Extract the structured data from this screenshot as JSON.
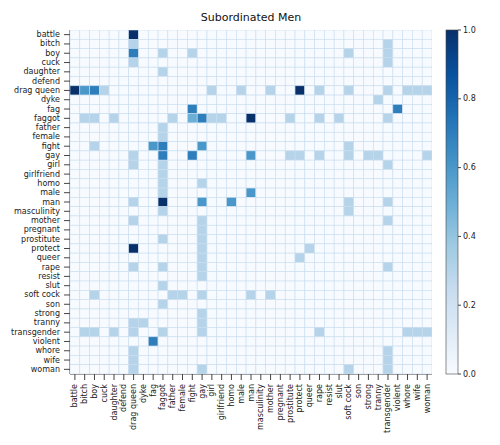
{
  "chart_data": {
    "type": "heatmap",
    "title": "Subordinated Men",
    "x_categories": [
      "battle",
      "bitch",
      "boy",
      "cuck",
      "daughter",
      "defend",
      "drag queen",
      "dyke",
      "fag",
      "faggot",
      "father",
      "female",
      "fight",
      "gay",
      "girl",
      "girlfriend",
      "homo",
      "male",
      "man",
      "masculinity",
      "mother",
      "pregnant",
      "prostitute",
      "protect",
      "queer",
      "rape",
      "resist",
      "slut",
      "soft cock",
      "son",
      "strong",
      "tranny",
      "transgender",
      "violent",
      "whore",
      "wife",
      "woman"
    ],
    "y_categories": [
      "battle",
      "bitch",
      "boy",
      "cuck",
      "daughter",
      "defend",
      "drag queen",
      "dyke",
      "fag",
      "faggot",
      "father",
      "female",
      "fight",
      "gay",
      "girl",
      "girlfriend",
      "homo",
      "male",
      "man",
      "masculinity",
      "mother",
      "pregnant",
      "prostitute",
      "protect",
      "queer",
      "rape",
      "resist",
      "slut",
      "soft cock",
      "son",
      "strong",
      "tranny",
      "transgender",
      "violent",
      "whore",
      "wife",
      "woman"
    ],
    "values": [
      [
        0,
        0,
        0,
        0,
        0,
        0,
        1,
        0,
        0,
        0,
        0,
        0,
        0,
        0,
        0,
        0,
        0,
        0,
        0,
        0,
        0,
        0,
        0,
        0,
        0,
        0,
        0,
        0,
        0,
        0,
        0,
        0,
        0,
        0,
        0,
        0,
        0
      ],
      [
        0,
        0,
        0,
        0,
        0,
        0,
        0.3,
        0,
        0,
        0,
        0,
        0,
        0,
        0,
        0,
        0,
        0,
        0,
        0,
        0,
        0,
        0,
        0,
        0,
        0,
        0,
        0,
        0,
        0,
        0,
        0,
        0,
        0.3,
        0,
        0,
        0,
        0
      ],
      [
        0,
        0,
        0,
        0,
        0,
        0,
        0.7,
        0,
        0,
        0.3,
        0,
        0,
        0.3,
        0,
        0,
        0,
        0,
        0,
        0,
        0,
        0,
        0,
        0,
        0,
        0,
        0,
        0,
        0,
        0.3,
        0,
        0,
        0,
        0.3,
        0,
        0,
        0,
        0
      ],
      [
        0,
        0,
        0,
        0,
        0,
        0,
        0.3,
        0,
        0,
        0,
        0,
        0,
        0,
        0,
        0,
        0,
        0,
        0,
        0,
        0,
        0,
        0,
        0,
        0,
        0,
        0,
        0,
        0,
        0,
        0,
        0,
        0,
        0.3,
        0,
        0,
        0,
        0
      ],
      [
        0,
        0,
        0,
        0,
        0,
        0,
        0,
        0,
        0,
        0.3,
        0,
        0,
        0,
        0,
        0,
        0,
        0,
        0,
        0,
        0,
        0,
        0,
        0,
        0,
        0,
        0,
        0,
        0,
        0,
        0,
        0,
        0,
        0,
        0,
        0,
        0,
        0
      ],
      [
        0,
        0,
        0,
        0,
        0,
        0,
        0,
        0,
        0,
        0,
        0,
        0,
        0,
        0,
        0,
        0,
        0,
        0,
        0,
        0,
        0,
        0,
        0,
        0,
        0,
        0,
        0,
        0,
        0,
        0,
        0,
        0,
        0,
        0,
        0,
        0,
        0
      ],
      [
        1,
        0.6,
        0.7,
        0.3,
        0,
        0,
        0,
        0,
        0,
        0,
        0,
        0,
        0,
        0,
        0.3,
        0,
        0,
        0.3,
        0,
        0,
        0.3,
        0,
        0,
        1,
        0,
        0.3,
        0,
        0,
        0.3,
        0,
        0,
        0,
        0.3,
        0,
        0.3,
        0.3,
        0.3
      ],
      [
        0,
        0,
        0,
        0,
        0,
        0,
        0,
        0,
        0,
        0,
        0,
        0,
        0,
        0,
        0,
        0,
        0,
        0,
        0,
        0,
        0,
        0,
        0,
        0,
        0,
        0,
        0,
        0,
        0,
        0,
        0,
        0.3,
        0,
        0,
        0,
        0,
        0
      ],
      [
        0,
        0,
        0,
        0,
        0,
        0,
        0,
        0,
        0,
        0,
        0,
        0,
        0.7,
        0,
        0,
        0,
        0,
        0,
        0,
        0,
        0,
        0,
        0,
        0,
        0,
        0,
        0,
        0,
        0,
        0,
        0,
        0,
        0,
        0.7,
        0,
        0,
        0
      ],
      [
        0,
        0.3,
        0.3,
        0,
        0.3,
        0,
        0,
        0,
        0,
        0,
        0.3,
        0,
        0.5,
        0.7,
        0.3,
        0.3,
        0,
        0,
        1,
        0,
        0,
        0,
        0.3,
        0,
        0,
        0.3,
        0,
        0.3,
        0,
        0,
        0,
        0,
        0.3,
        0,
        0,
        0,
        0
      ],
      [
        0,
        0,
        0,
        0,
        0,
        0,
        0,
        0,
        0,
        0.3,
        0,
        0,
        0,
        0,
        0,
        0,
        0,
        0,
        0,
        0,
        0,
        0,
        0,
        0,
        0,
        0,
        0,
        0,
        0,
        0,
        0,
        0,
        0,
        0,
        0,
        0,
        0
      ],
      [
        0,
        0,
        0,
        0,
        0,
        0,
        0,
        0,
        0,
        0.3,
        0,
        0,
        0,
        0,
        0,
        0,
        0,
        0,
        0,
        0,
        0,
        0,
        0,
        0,
        0,
        0,
        0,
        0,
        0,
        0,
        0,
        0,
        0,
        0,
        0,
        0,
        0
      ],
      [
        0,
        0,
        0.3,
        0,
        0,
        0,
        0,
        0,
        0.6,
        0.7,
        0,
        0,
        0,
        0.6,
        0,
        0,
        0,
        0,
        0,
        0,
        0,
        0,
        0,
        0,
        0,
        0,
        0,
        0,
        0.3,
        0,
        0,
        0,
        0,
        0,
        0,
        0,
        0
      ],
      [
        0,
        0,
        0,
        0,
        0,
        0,
        0.3,
        0,
        0,
        0.7,
        0,
        0,
        0.7,
        0,
        0,
        0,
        0,
        0,
        0.6,
        0,
        0,
        0,
        0.3,
        0.3,
        0,
        0.3,
        0,
        0,
        0.3,
        0,
        0.3,
        0.3,
        0,
        0,
        0,
        0,
        0.3
      ],
      [
        0,
        0,
        0,
        0,
        0,
        0,
        0.3,
        0,
        0,
        0.3,
        0,
        0,
        0,
        0,
        0,
        0,
        0,
        0,
        0,
        0,
        0,
        0,
        0,
        0,
        0,
        0,
        0,
        0,
        0,
        0,
        0,
        0,
        0.3,
        0,
        0,
        0,
        0
      ],
      [
        0,
        0,
        0,
        0,
        0,
        0,
        0,
        0,
        0,
        0.3,
        0,
        0,
        0,
        0,
        0,
        0,
        0,
        0,
        0,
        0,
        0,
        0,
        0,
        0,
        0,
        0,
        0,
        0,
        0,
        0,
        0,
        0,
        0,
        0,
        0,
        0,
        0
      ],
      [
        0,
        0,
        0,
        0,
        0,
        0,
        0,
        0,
        0,
        0.3,
        0,
        0,
        0,
        0.3,
        0,
        0,
        0,
        0,
        0,
        0,
        0,
        0,
        0,
        0,
        0,
        0,
        0,
        0,
        0,
        0,
        0,
        0,
        0,
        0,
        0,
        0,
        0
      ],
      [
        0,
        0,
        0,
        0,
        0,
        0,
        0,
        0,
        0,
        0.3,
        0,
        0,
        0,
        0,
        0,
        0,
        0,
        0,
        0.6,
        0,
        0,
        0,
        0,
        0,
        0,
        0,
        0,
        0,
        0,
        0,
        0,
        0,
        0,
        0,
        0,
        0,
        0
      ],
      [
        0,
        0,
        0,
        0,
        0,
        0,
        0.3,
        0,
        0,
        1,
        0,
        0,
        0,
        0.6,
        0,
        0,
        0.6,
        0,
        0,
        0,
        0,
        0,
        0,
        0,
        0,
        0,
        0,
        0,
        0.3,
        0,
        0,
        0,
        0.3,
        0,
        0,
        0,
        0
      ],
      [
        0,
        0,
        0,
        0,
        0,
        0,
        0,
        0,
        0,
        0.3,
        0,
        0,
        0,
        0,
        0,
        0,
        0,
        0,
        0,
        0,
        0,
        0,
        0,
        0,
        0,
        0,
        0,
        0,
        0.3,
        0,
        0,
        0,
        0,
        0,
        0,
        0,
        0
      ],
      [
        0,
        0,
        0,
        0,
        0,
        0,
        0.3,
        0,
        0,
        0,
        0,
        0,
        0,
        0.3,
        0,
        0,
        0,
        0,
        0,
        0,
        0,
        0,
        0,
        0,
        0,
        0,
        0,
        0,
        0,
        0,
        0,
        0,
        0.3,
        0,
        0,
        0,
        0
      ],
      [
        0,
        0,
        0,
        0,
        0,
        0,
        0,
        0,
        0,
        0,
        0,
        0,
        0,
        0.3,
        0,
        0,
        0,
        0,
        0,
        0,
        0,
        0,
        0,
        0,
        0,
        0,
        0,
        0,
        0,
        0,
        0,
        0,
        0,
        0,
        0,
        0,
        0
      ],
      [
        0,
        0,
        0,
        0,
        0,
        0,
        0,
        0,
        0,
        0.3,
        0,
        0,
        0,
        0.3,
        0,
        0,
        0,
        0,
        0,
        0,
        0,
        0,
        0,
        0,
        0,
        0,
        0,
        0,
        0,
        0,
        0,
        0,
        0,
        0,
        0,
        0,
        0
      ],
      [
        0,
        0,
        0,
        0,
        0,
        0,
        1,
        0,
        0,
        0,
        0,
        0,
        0,
        0.3,
        0,
        0,
        0,
        0,
        0,
        0,
        0,
        0,
        0,
        0,
        0.3,
        0,
        0,
        0,
        0,
        0,
        0,
        0,
        0,
        0,
        0,
        0,
        0
      ],
      [
        0,
        0,
        0,
        0,
        0,
        0,
        0,
        0,
        0,
        0,
        0,
        0,
        0,
        0.3,
        0,
        0,
        0,
        0,
        0,
        0,
        0,
        0,
        0,
        0.3,
        0,
        0,
        0,
        0,
        0,
        0,
        0,
        0,
        0,
        0,
        0,
        0,
        0
      ],
      [
        0,
        0,
        0,
        0,
        0,
        0,
        0.3,
        0,
        0,
        0.3,
        0,
        0,
        0,
        0.3,
        0,
        0,
        0,
        0,
        0,
        0,
        0,
        0,
        0,
        0,
        0,
        0,
        0,
        0,
        0,
        0,
        0,
        0,
        0.3,
        0,
        0,
        0,
        0
      ],
      [
        0,
        0,
        0,
        0,
        0,
        0,
        0,
        0,
        0,
        0,
        0,
        0,
        0,
        0.3,
        0,
        0,
        0,
        0,
        0,
        0,
        0,
        0,
        0,
        0,
        0,
        0,
        0,
        0,
        0,
        0,
        0,
        0,
        0,
        0,
        0,
        0,
        0
      ],
      [
        0,
        0,
        0,
        0,
        0,
        0,
        0,
        0,
        0,
        0.3,
        0,
        0,
        0,
        0,
        0,
        0,
        0,
        0,
        0,
        0,
        0,
        0,
        0,
        0,
        0,
        0,
        0,
        0,
        0,
        0,
        0,
        0,
        0,
        0,
        0,
        0,
        0
      ],
      [
        0,
        0,
        0.3,
        0,
        0,
        0,
        0,
        0,
        0,
        0,
        0.3,
        0.3,
        0,
        0.3,
        0,
        0,
        0,
        0,
        0.3,
        0,
        0.3,
        0,
        0,
        0,
        0,
        0,
        0,
        0,
        0,
        0,
        0,
        0,
        0,
        0,
        0,
        0,
        0
      ],
      [
        0,
        0,
        0,
        0,
        0,
        0,
        0,
        0,
        0,
        0.3,
        0,
        0,
        0,
        0,
        0,
        0,
        0,
        0,
        0,
        0,
        0,
        0,
        0,
        0,
        0,
        0,
        0,
        0,
        0,
        0,
        0,
        0,
        0,
        0,
        0,
        0,
        0
      ],
      [
        0,
        0,
        0,
        0,
        0,
        0,
        0,
        0,
        0,
        0,
        0,
        0,
        0,
        0.3,
        0,
        0,
        0,
        0,
        0,
        0,
        0,
        0,
        0,
        0,
        0,
        0,
        0,
        0,
        0,
        0,
        0,
        0,
        0,
        0,
        0,
        0,
        0
      ],
      [
        0,
        0,
        0,
        0,
        0,
        0,
        0.3,
        0.3,
        0,
        0,
        0,
        0,
        0,
        0.3,
        0,
        0,
        0,
        0,
        0,
        0,
        0,
        0,
        0,
        0,
        0,
        0,
        0,
        0,
        0,
        0,
        0,
        0,
        0,
        0,
        0,
        0,
        0
      ],
      [
        0,
        0.3,
        0.3,
        0,
        0.3,
        0,
        0.3,
        0,
        0,
        0.3,
        0,
        0,
        0,
        0.3,
        0,
        0,
        0,
        0,
        0,
        0,
        0,
        0,
        0,
        0,
        0,
        0.3,
        0,
        0,
        0,
        0,
        0,
        0,
        0,
        0,
        0.3,
        0.3,
        0.3
      ],
      [
        0,
        0,
        0,
        0,
        0,
        0,
        0,
        0,
        0.7,
        0,
        0,
        0,
        0,
        0,
        0,
        0,
        0,
        0,
        0,
        0,
        0,
        0,
        0,
        0,
        0,
        0,
        0,
        0,
        0,
        0,
        0,
        0,
        0,
        0,
        0,
        0,
        0
      ],
      [
        0,
        0,
        0,
        0,
        0,
        0,
        0.3,
        0,
        0,
        0,
        0,
        0,
        0,
        0,
        0,
        0,
        0,
        0,
        0,
        0,
        0,
        0,
        0,
        0,
        0,
        0,
        0,
        0,
        0,
        0,
        0,
        0,
        0.3,
        0,
        0,
        0,
        0
      ],
      [
        0,
        0,
        0,
        0,
        0,
        0,
        0.3,
        0,
        0,
        0,
        0,
        0,
        0,
        0,
        0,
        0,
        0,
        0,
        0,
        0,
        0,
        0,
        0,
        0,
        0,
        0,
        0,
        0,
        0,
        0,
        0,
        0,
        0.3,
        0,
        0,
        0,
        0
      ],
      [
        0,
        0,
        0,
        0,
        0,
        0,
        0.3,
        0,
        0,
        0,
        0,
        0,
        0,
        0.3,
        0,
        0,
        0,
        0,
        0,
        0,
        0,
        0,
        0,
        0,
        0,
        0,
        0,
        0,
        0.3,
        0,
        0,
        0,
        0.3,
        0,
        0,
        0,
        0
      ]
    ],
    "colorbar_range": [
      0,
      1
    ],
    "colorbar_ticks": [
      {
        "value": 0,
        "label": "0.0"
      },
      0.2,
      0.4,
      0.6,
      0.8,
      {
        "value": 1,
        "label": "1.0"
      }
    ]
  }
}
